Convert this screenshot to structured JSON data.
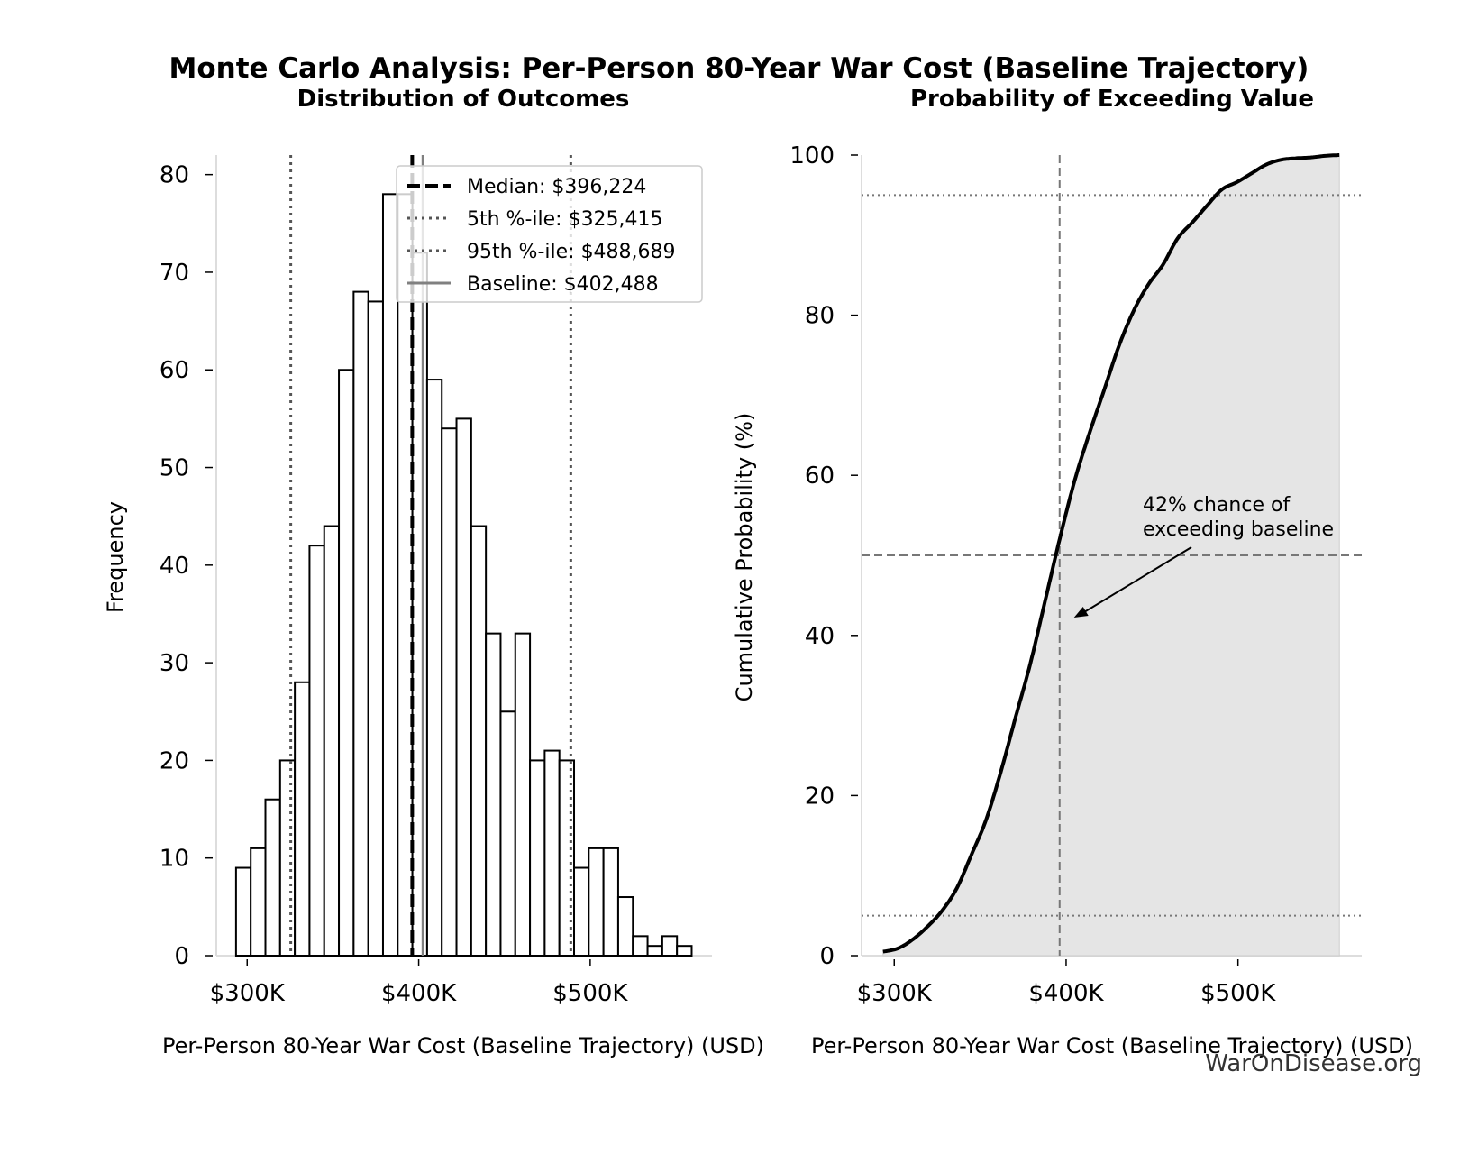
{
  "title": "Monte Carlo Analysis: Per-Person 80-Year War Cost (Baseline Trajectory)",
  "watermark": "WarOnDisease.org",
  "chart_data": [
    {
      "type": "bar",
      "title": "Distribution of Outcomes",
      "xlabel": "Per-Person 80-Year War Cost (Baseline Trajectory) (USD)",
      "ylabel": "Frequency",
      "bin_start": 293500,
      "bin_width": 8570,
      "values": [
        9,
        11,
        16,
        20,
        28,
        42,
        44,
        60,
        68,
        67,
        78,
        78,
        72,
        59,
        54,
        55,
        44,
        33,
        25,
        33,
        20,
        21,
        20,
        9,
        11,
        11,
        6,
        2,
        1,
        2,
        1
      ],
      "xlim": [
        282000,
        571000
      ],
      "ylim": [
        0,
        82
      ],
      "xticks": [
        300000,
        400000,
        500000
      ],
      "xtick_labels": [
        "$300K",
        "$400K",
        "$500K"
      ],
      "yticks": [
        0,
        10,
        20,
        30,
        40,
        50,
        60,
        70,
        80
      ],
      "grid": false,
      "legend_placement": "top-right",
      "reference_lines": [
        {
          "label": "Median: $396,224",
          "value": 396224,
          "style": "dashed",
          "color": "#000000"
        },
        {
          "label": "5th %-ile: $325,415",
          "value": 325415,
          "style": "dotted",
          "color": "#555555"
        },
        {
          "label": "95th %-ile: $488,689",
          "value": 488689,
          "style": "dotted",
          "color": "#555555"
        },
        {
          "label": "Baseline: $402,488",
          "value": 402488,
          "style": "solid",
          "color": "#808080"
        }
      ]
    },
    {
      "type": "area",
      "title": "Probability of Exceeding Value",
      "xlabel": "Per-Person 80-Year War Cost (Baseline Trajectory) (USD)",
      "ylabel": "Cumulative Probability (%)",
      "xlim": [
        281000,
        572000
      ],
      "ylim": [
        0,
        100
      ],
      "xticks": [
        300000,
        400000,
        500000
      ],
      "xtick_labels": [
        "$300K",
        "$400K",
        "$500K"
      ],
      "yticks": [
        0,
        20,
        40,
        60,
        80,
        100
      ],
      "curve_range": [
        293500,
        559000
      ],
      "fill_color": "#e5e5e5",
      "hlines": [
        {
          "value": 5,
          "style": "dotted"
        },
        {
          "value": 50,
          "style": "dashed"
        },
        {
          "value": 95,
          "style": "dotted"
        }
      ],
      "vline": {
        "value": 396224,
        "style": "dashed"
      },
      "annotation": {
        "text": [
          "42% chance of",
          "exceeding baseline"
        ],
        "point": [
          402488,
          42
        ]
      },
      "grid": false
    }
  ]
}
